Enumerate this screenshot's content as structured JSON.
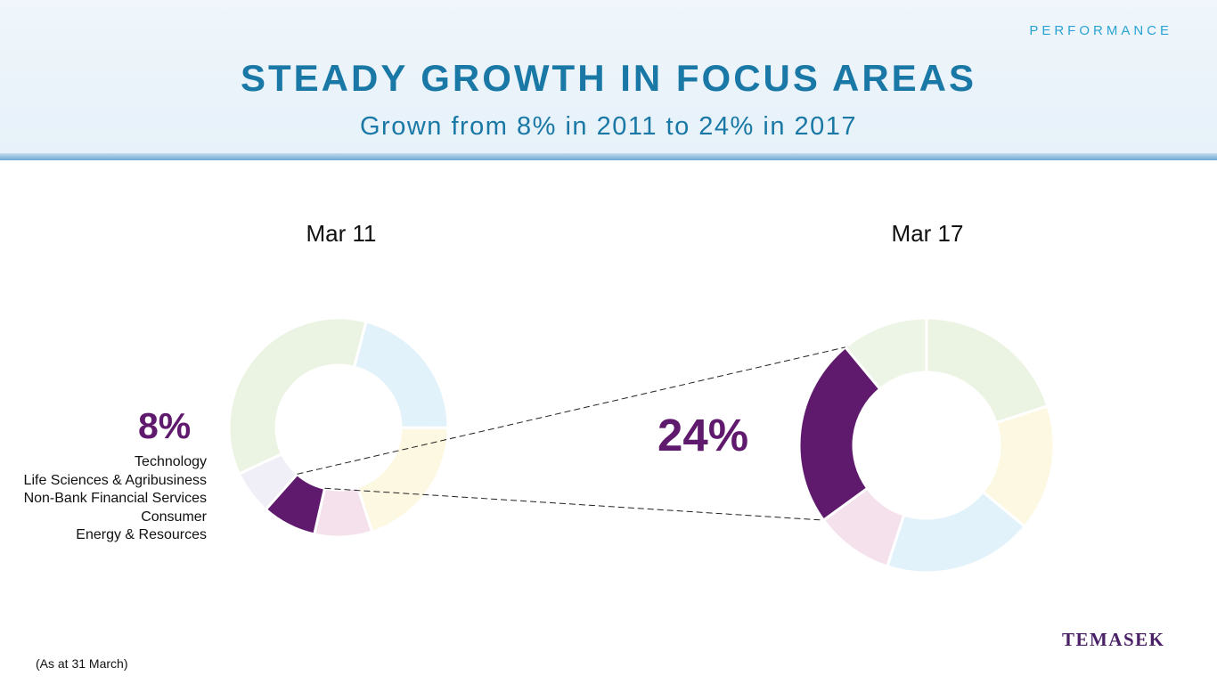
{
  "header": {
    "section": "PERFORMANCE",
    "title": "STEADY GROWTH IN FOCUS AREAS",
    "subtitle": "Grown from 8% in 2011 to 24% in 2017"
  },
  "legend": [
    "Technology",
    "Life Sciences & Agribusiness",
    "Non-Bank Financial Services",
    "Consumer",
    "Energy & Resources"
  ],
  "footnote": "(As at 31 March)",
  "logo": "TEMASEK",
  "colors": {
    "highlight": "#5f1a6d",
    "title": "#1a78a6",
    "section_label": "#2aa3d4"
  },
  "chart_data": [
    {
      "type": "pie",
      "title": "Mar 11",
      "highlight_label": "8%",
      "slices": [
        {
          "value": 36,
          "color": "#ebf3e2"
        },
        {
          "value": 21,
          "color": "#e2f2fa"
        },
        {
          "value": 20,
          "color": "#fdf8e2"
        },
        {
          "value": 8.5,
          "color": "#f4e1ec"
        },
        {
          "value": 8,
          "color": "#5f1a6d",
          "highlight": true
        },
        {
          "value": 6.5,
          "color": "#f0eef6"
        }
      ]
    },
    {
      "type": "pie",
      "title": "Mar 17",
      "highlight_label": "24%",
      "slices": [
        {
          "value": 20,
          "color": "#ebf3e2"
        },
        {
          "value": 16,
          "color": "#fdf8e2"
        },
        {
          "value": 19,
          "color": "#e2f2fa"
        },
        {
          "value": 10,
          "color": "#f4e1ec"
        },
        {
          "value": 24,
          "color": "#5f1a6d",
          "highlight": true
        },
        {
          "value": 11,
          "color": "#edf5e6"
        }
      ]
    }
  ]
}
